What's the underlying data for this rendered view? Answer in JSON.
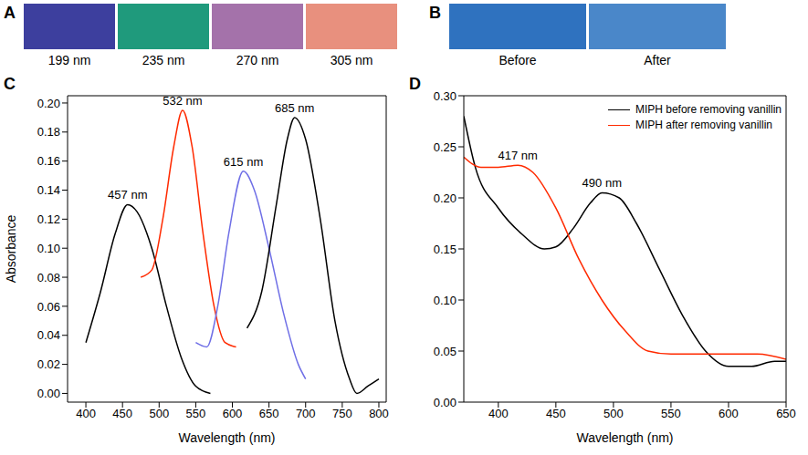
{
  "photo_panels": [
    {
      "panel": "A",
      "swatches": [
        {
          "label": "199 nm",
          "color": "#3d3f9e"
        },
        {
          "label": "235 nm",
          "color": "#1f9a7c"
        },
        {
          "label": "270 nm",
          "color": "#a472aa"
        },
        {
          "label": "305 nm",
          "color": "#e8907e"
        }
      ]
    },
    {
      "panel": "B",
      "swatches": [
        {
          "label": "Before",
          "color": "#2f72bf"
        },
        {
          "label": "After",
          "color": "#4a87c9"
        }
      ]
    }
  ],
  "chart_data": [
    {
      "panel": "C",
      "type": "line",
      "xlabel": "Wavelength (nm)",
      "ylabel": "Absorbance",
      "xlim": [
        375,
        810
      ],
      "xticks": [
        400,
        450,
        500,
        550,
        600,
        650,
        700,
        750,
        800
      ],
      "ylim": [
        -0.006,
        0.205
      ],
      "yticks": [
        {
          "value": 0,
          "label": "0.00"
        },
        {
          "value": 0.02,
          "label": "0.02"
        },
        {
          "value": 0.04,
          "label": "0.04"
        },
        {
          "value": 0.06,
          "label": "0.06"
        },
        {
          "value": 0.08,
          "label": "0.08"
        },
        {
          "value": 0.1,
          "label": "0.10"
        },
        {
          "value": 0.12,
          "label": "0.12"
        },
        {
          "value": 0.14,
          "label": "0.14"
        },
        {
          "value": 0.16,
          "label": "0.16"
        },
        {
          "value": 0.18,
          "label": "0.18"
        },
        {
          "value": 0.2,
          "label": "0.20"
        }
      ],
      "series": [
        {
          "color": "#000000",
          "x": [
            400,
            420,
            440,
            457,
            470,
            490,
            510,
            530,
            550,
            570
          ],
          "values": [
            0.035,
            0.07,
            0.11,
            0.13,
            0.125,
            0.1,
            0.06,
            0.025,
            0.005,
            0.0
          ]
        },
        {
          "color": "#ff2a00",
          "x": [
            475,
            490,
            505,
            520,
            532,
            545,
            560,
            575,
            590,
            605
          ],
          "values": [
            0.08,
            0.085,
            0.12,
            0.17,
            0.195,
            0.17,
            0.11,
            0.06,
            0.035,
            0.032
          ]
        },
        {
          "color": "#6f6fe6",
          "x": [
            550,
            565,
            580,
            595,
            615,
            630,
            650,
            670,
            690,
            700
          ],
          "values": [
            0.035,
            0.032,
            0.06,
            0.11,
            0.153,
            0.14,
            0.1,
            0.055,
            0.02,
            0.01
          ]
        },
        {
          "color": "#000000",
          "x": [
            620,
            640,
            660,
            675,
            685,
            700,
            720,
            740,
            760,
            770,
            785,
            800
          ],
          "values": [
            0.045,
            0.07,
            0.13,
            0.175,
            0.19,
            0.175,
            0.12,
            0.05,
            0.01,
            0.0,
            0.005,
            0.01
          ]
        }
      ],
      "annotations": [
        {
          "text": "457 nm",
          "x": 457,
          "y": 0.13
        },
        {
          "text": "532 nm",
          "x": 532,
          "y": 0.195
        },
        {
          "text": "615 nm",
          "x": 615,
          "y": 0.153
        },
        {
          "text": "685 nm",
          "x": 685,
          "y": 0.19
        }
      ]
    },
    {
      "panel": "D",
      "type": "line",
      "xlabel": "Wavelength (nm)",
      "xlim": [
        370,
        650
      ],
      "xticks": [
        400,
        450,
        500,
        550,
        600,
        650
      ],
      "ylim": [
        0,
        0.3
      ],
      "yticks": [
        {
          "value": 0,
          "label": "0.00"
        },
        {
          "value": 0.05,
          "label": "0.05"
        },
        {
          "value": 0.1,
          "label": "0.10"
        },
        {
          "value": 0.15,
          "label": "0.15"
        },
        {
          "value": 0.2,
          "label": "0.20"
        },
        {
          "value": 0.25,
          "label": "0.25"
        },
        {
          "value": 0.3,
          "label": "0.30"
        }
      ],
      "legend": "upper right",
      "series": [
        {
          "name": "MIPH before removing vanillin",
          "color": "#000000",
          "x": [
            370,
            380,
            400,
            420,
            440,
            450,
            465,
            480,
            490,
            505,
            520,
            540,
            560,
            580,
            600,
            620,
            640,
            650
          ],
          "values": [
            0.28,
            0.23,
            0.19,
            0.165,
            0.15,
            0.152,
            0.17,
            0.195,
            0.205,
            0.2,
            0.175,
            0.13,
            0.085,
            0.05,
            0.035,
            0.035,
            0.04,
            0.04
          ]
        },
        {
          "name": "MIPH after removing vanillin",
          "color": "#ff2a00",
          "x": [
            370,
            385,
            400,
            417,
            430,
            450,
            470,
            490,
            510,
            530,
            550,
            600,
            625,
            650
          ],
          "values": [
            0.24,
            0.23,
            0.23,
            0.232,
            0.225,
            0.19,
            0.14,
            0.1,
            0.07,
            0.05,
            0.047,
            0.047,
            0.047,
            0.042
          ]
        }
      ],
      "annotations": [
        {
          "text": "417 nm",
          "x": 417,
          "y": 0.232
        },
        {
          "text": "490 nm",
          "x": 490,
          "y": 0.205
        }
      ]
    }
  ]
}
